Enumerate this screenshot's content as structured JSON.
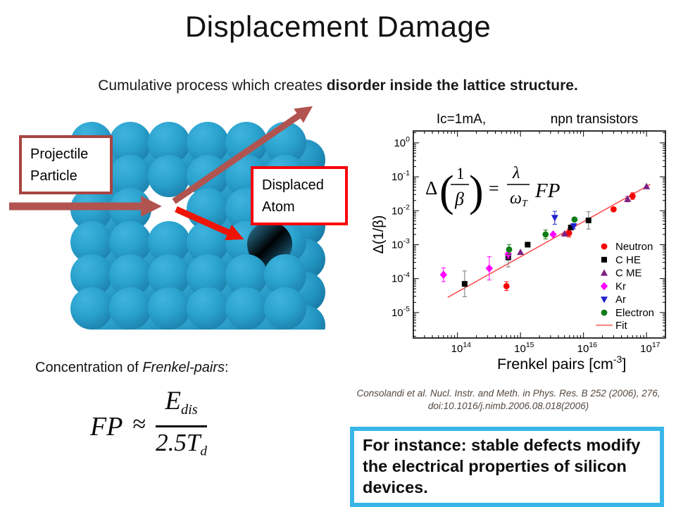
{
  "slide": {
    "title": "Displacement Damage",
    "subtitle_normal": "Cumulative process which creates ",
    "subtitle_bold": "disorder inside the lattice structure."
  },
  "lattice": {
    "projectile_label_line1": "Projectile",
    "projectile_label_line2": "Particle",
    "displaced_label_line1": "Displaced",
    "displaced_label_line2": "Atom",
    "sphere_color": "#2aa2ce",
    "displaced_sphere_color": "#0b2c3a",
    "arrow_muted_color": "#b15450",
    "arrow_bright_color": "#ee1505",
    "projectile_box_border_color": "#a84542",
    "displaced_box_border_color": "#fb0007"
  },
  "concentration": {
    "prefix": "Concentration of ",
    "italic_term": "Frenkel-pairs",
    "suffix": ":"
  },
  "fp_formula": {
    "lhs": "FP",
    "approx": "≈",
    "numerator_main": "E",
    "numerator_sub": "dis",
    "denominator_main": "2.5T",
    "denominator_sub": "d"
  },
  "citation": {
    "line1": "Consolandi et al. Nucl. Instr. and Meth. in Phys. Res. B 252 (2006), 276,",
    "line2": "doi:10.1016/j.nimb.2006.08.018(2006)"
  },
  "callout": {
    "text": "For instance: stable defects modify the electrical properties of silicon devices.",
    "border_color": "#38b6e8"
  },
  "chart_data": {
    "type": "scatter",
    "title_left": "Ic=1mA,",
    "title_right": "npn transistors",
    "xlabel_main": "Frenkel pairs [cm",
    "xlabel_sup": "-3",
    "xlabel_close": "]",
    "ylabel": "Δ(1/β)",
    "x_scale": "log",
    "y_scale": "log",
    "x_range_exponents": [
      13.3,
      17.3
    ],
    "y_range_exponents": [
      0.35,
      -5.75
    ],
    "x_tick_exponents": [
      14,
      15,
      16,
      17
    ],
    "y_tick_exponents": [
      0,
      -1,
      -2,
      -3,
      -4,
      -5
    ],
    "grid": false,
    "legend_position": "inside-lower-right",
    "annotation": {
      "delta": "Δ",
      "one": "1",
      "beta": "β",
      "open": "(",
      "close": ")",
      "equals": "=",
      "lambda": "λ",
      "omega": "ω",
      "omega_sub": "T",
      "fp": "FP"
    },
    "series": [
      {
        "name": "Neutron",
        "marker": "circle",
        "color": "#f40000",
        "points": [
          [
            600000000000000.0,
            6e-05,
            1.35
          ],
          [
            5900000000000000.0,
            0.0022,
            1.3
          ],
          [
            3e+16,
            0.011,
            0
          ],
          [
            6e+16,
            0.027,
            1.25
          ]
        ]
      },
      {
        "name": "C HE",
        "marker": "square",
        "color": "#000000",
        "points": [
          [
            130000000000000.0,
            7e-05,
            2.4
          ],
          [
            640000000000000.0,
            0.00042,
            1.9
          ],
          [
            1300000000000000.0,
            0.001,
            0
          ],
          [
            6300000000000000.0,
            0.0032,
            0
          ],
          [
            1.2e+16,
            0.0052,
            1.8
          ]
        ]
      },
      {
        "name": "C ME",
        "marker": "triangle-up",
        "color": "#7c2083",
        "points": [
          [
            1000000000000000.0,
            0.0006,
            0
          ],
          [
            5000000000000000.0,
            0.0021,
            0
          ],
          [
            5e+16,
            0.022,
            1.2
          ],
          [
            1e+17,
            0.052,
            0
          ]
        ]
      },
      {
        "name": "Kr",
        "marker": "diamond",
        "color": "#ff00ff",
        "points": [
          [
            60000000000000.0,
            0.00013,
            1.6
          ],
          [
            320000000000000.0,
            0.0002,
            2.2
          ],
          [
            640000000000000.0,
            0.00053,
            1.35
          ],
          [
            3300000000000000.0,
            0.002,
            0
          ]
        ]
      },
      {
        "name": "Ar",
        "marker": "triangle-down",
        "color": "#2020cc",
        "points": [
          [
            3500000000000000.0,
            0.0062,
            1.55
          ],
          [
            7000000000000000.0,
            0.0035,
            1.2
          ]
        ]
      },
      {
        "name": "Electron",
        "marker": "circle",
        "color": "#0d7d16",
        "points": [
          [
            660000000000000.0,
            0.00072,
            1.4
          ],
          [
            2500000000000000.0,
            0.002,
            1.35
          ],
          [
            7200000000000000.0,
            0.0055,
            0
          ]
        ]
      }
    ],
    "fit": {
      "name": "Fit",
      "color": "#ff4a4a",
      "from": [
        70000000000000.0,
        2.8e-05
      ],
      "to": [
        1.15e+17,
        0.06
      ]
    }
  }
}
